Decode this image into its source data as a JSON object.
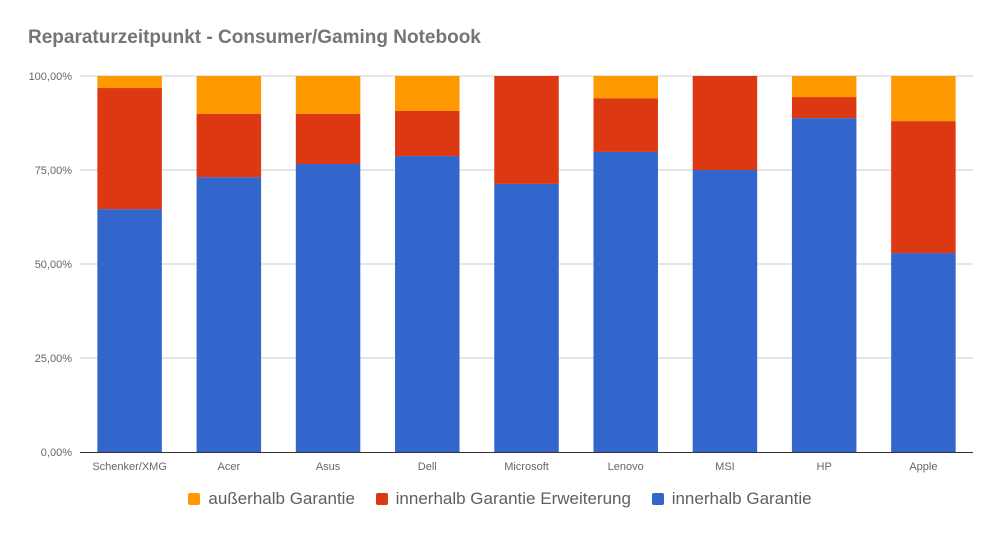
{
  "chart_data": {
    "type": "bar",
    "stacked": true,
    "title": "Reparaturzeitpunkt - Consumer/Gaming Notebook",
    "xlabel": "",
    "ylabel": "",
    "ylim": [
      0,
      100
    ],
    "yticks": [
      {
        "value": 0,
        "label": "0,00%"
      },
      {
        "value": 25,
        "label": "25,00%"
      },
      {
        "value": 50,
        "label": "50,00%"
      },
      {
        "value": 75,
        "label": "75,00%"
      },
      {
        "value": 100,
        "label": "100,00%"
      }
    ],
    "grid": true,
    "legend_position": "bottom",
    "categories": [
      "Schenker/XMG",
      "Acer",
      "Asus",
      "Dell",
      "Microsoft",
      "Lenovo",
      "MSI",
      "HP",
      "Apple"
    ],
    "series": [
      {
        "name": "innerhalb Garantie",
        "color": "#3366cc",
        "values": [
          64.6,
          73.1,
          76.6,
          78.7,
          71.3,
          79.8,
          75.0,
          88.8,
          52.9
        ]
      },
      {
        "name": "innerhalb Garantie Erweiterung",
        "color": "#dc3912",
        "values": [
          32.2,
          16.8,
          13.3,
          12.0,
          28.7,
          14.3,
          25.0,
          5.6,
          35.1
        ]
      },
      {
        "name": "außerhalb Garantie",
        "color": "#ff9900",
        "values": [
          3.2,
          10.1,
          10.1,
          9.3,
          0,
          5.9,
          0,
          5.6,
          12.0
        ]
      }
    ],
    "legend_order": [
      "außerhalb Garantie",
      "innerhalb Garantie Erweiterung",
      "innerhalb Garantie"
    ]
  }
}
